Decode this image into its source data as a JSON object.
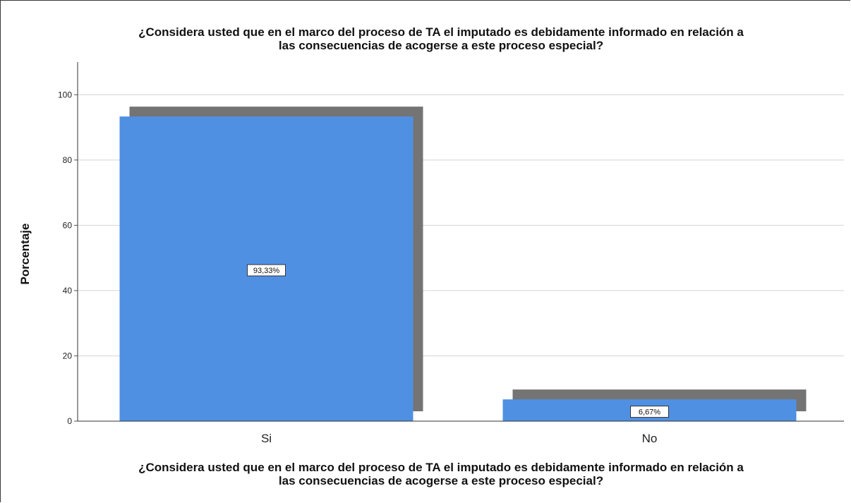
{
  "chart_data": {
    "type": "bar",
    "title": "¿Considera usted que en el marco del proceso de TA el imputado es debidamente informado en relación a las consecuencias de acogerse a este proceso especial?",
    "title_lines": [
      "¿Considera usted que en el marco del proceso de TA el imputado es debidamente informado en relación a",
      "las consecuencias de acogerse a este proceso especial?"
    ],
    "xlabel": "¿Considera usted que en el marco del proceso de TA el imputado es debidamente informado en relación a las consecuencias de acogerse a este proceso especial?",
    "xlabel_lines": [
      "¿Considera usted que en el marco del proceso de TA el imputado es debidamente informado en relación a",
      "las consecuencias de acogerse a este proceso especial?"
    ],
    "ylabel": "Porcentaje",
    "categories": [
      "Si",
      "No"
    ],
    "values": [
      93.33,
      6.67
    ],
    "data_labels": [
      "93,33%",
      "6,67%"
    ],
    "ylim": [
      0,
      110
    ],
    "yticks": [
      0,
      20,
      40,
      60,
      80,
      100
    ],
    "grid": true,
    "bar_color": "#4f90e3",
    "shadow_color": "#747474"
  }
}
